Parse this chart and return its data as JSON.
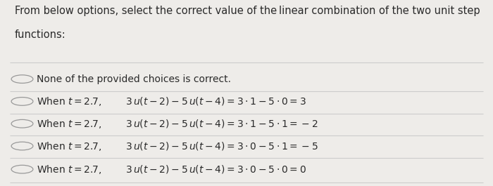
{
  "title_line1": "From below options, select the correct value of the linear combination of the two unit step",
  "title_line2": "functions:",
  "background_color": "#eeece9",
  "options": [
    {
      "label": "None of the provided choices is correct.",
      "math": ""
    },
    {
      "label": "When $t = 2.7$,",
      "math": "$3\\,u(t-2) - 5\\,u(t-4) = 3 \\cdot 1 - 5 \\cdot 0 = 3$"
    },
    {
      "label": "When $t = 2.7$,",
      "math": "$3\\,u(t-2) - 5\\,u(t-4) = 3 \\cdot 1 - 5 \\cdot 1 = -2$"
    },
    {
      "label": "When $t = 2.7$,",
      "math": "$3\\,u(t-2) - 5\\,u(t-4) = 3 \\cdot 0 - 5 \\cdot 1 = -5$"
    },
    {
      "label": "When $t = 2.7$,",
      "math": "$3\\,u(t-2) - 5\\,u(t-4) = 3 \\cdot 0 - 5 \\cdot 0 = 0$"
    }
  ],
  "title_fontsize": 10.5,
  "option_fontsize": 10.0,
  "text_color": "#2a2a2a",
  "circle_color": "#999999",
  "line_color": "#cccccc"
}
